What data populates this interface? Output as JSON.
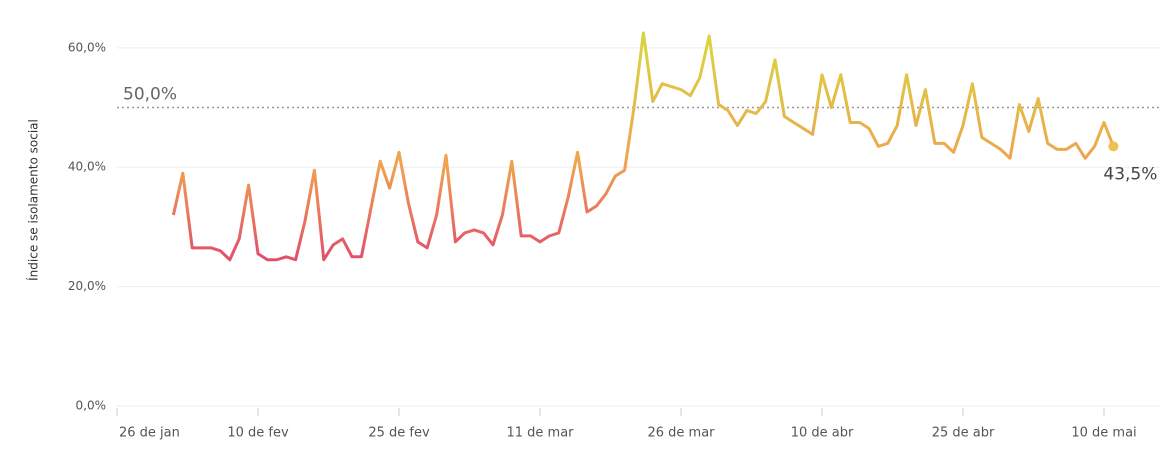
{
  "chart_data": {
    "type": "line",
    "y_label": "Índice se isolamento social",
    "x": [
      "26 de jan",
      "27 de jan",
      "28 de jan",
      "29 de jan",
      "30 de jan",
      "31 de jan",
      "1 de fev",
      "2 de fev",
      "3 de fev",
      "4 de fev",
      "5 de fev",
      "6 de fev",
      "7 de fev",
      "8 de fev",
      "9 de fev",
      "10 de fev",
      "11 de fev",
      "12 de fev",
      "13 de fev",
      "14 de fev",
      "15 de fev",
      "16 de fev",
      "17 de fev",
      "18 de fev",
      "19 de fev",
      "20 de fev",
      "21 de fev",
      "22 de fev",
      "23 de fev",
      "24 de fev",
      "25 de fev",
      "26 de fev",
      "27 de fev",
      "28 de fev",
      "29 de fev",
      "1 de mar",
      "2 de mar",
      "3 de mar",
      "4 de mar",
      "5 de mar",
      "6 de mar",
      "7 de mar",
      "8 de mar",
      "9 de mar",
      "10 de mar",
      "11 de mar",
      "12 de mar",
      "13 de mar",
      "14 de mar",
      "15 de mar",
      "16 de mar",
      "17 de mar",
      "18 de mar",
      "19 de mar",
      "20 de mar",
      "21 de mar",
      "22 de mar",
      "23 de mar",
      "24 de mar",
      "25 de mar",
      "26 de mar",
      "27 de mar",
      "28 de mar",
      "29 de mar",
      "30 de mar",
      "31 de mar",
      "1 de abr",
      "2 de abr",
      "3 de abr",
      "4 de abr",
      "5 de abr",
      "6 de abr",
      "7 de abr",
      "8 de abr",
      "9 de abr",
      "10 de abr",
      "11 de abr",
      "12 de abr",
      "13 de abr",
      "14 de abr",
      "15 de abr",
      "16 de abr",
      "17 de abr",
      "18 de abr",
      "19 de abr",
      "20 de abr",
      "21 de abr",
      "22 de abr",
      "23 de abr",
      "24 de abr",
      "25 de abr",
      "26 de abr",
      "27 de abr",
      "28 de abr",
      "29 de abr",
      "30 de abr",
      "1 de mai",
      "2 de mai",
      "3 de mai",
      "4 de mai",
      "5 de mai",
      "6 de mai",
      "7 de mai",
      "8 de mai",
      "9 de mai",
      "10 de mai",
      "11 de mai"
    ],
    "series": [
      {
        "name": "Índice se isolamento social",
        "values": [
          null,
          null,
          null,
          null,
          null,
          null,
          32,
          39,
          26.5,
          26.5,
          26.5,
          26,
          24.5,
          28,
          37,
          25.5,
          24.5,
          24.5,
          25,
          24.5,
          31,
          39.5,
          24.5,
          27,
          28,
          25,
          25,
          33,
          41,
          36.5,
          42.5,
          34,
          27.5,
          26.5,
          32,
          42,
          27.5,
          29,
          29.5,
          29,
          27,
          32,
          41,
          28.5,
          28.5,
          27.5,
          28.5,
          29,
          35,
          42.5,
          32.5,
          33.5,
          35.5,
          38.5,
          39.5,
          50,
          62.5,
          51,
          54,
          53.5,
          53,
          52,
          55,
          62,
          50.5,
          49.5,
          47,
          49.5,
          49,
          51,
          58,
          48.5,
          47.5,
          46.5,
          45.5,
          55.5,
          50,
          55.5,
          47.5,
          47.5,
          46.5,
          43.5,
          44,
          47,
          55.5,
          47,
          53,
          44,
          44,
          42.5,
          47,
          54,
          45,
          44,
          43,
          41.5,
          50.5,
          46,
          51.5,
          44,
          43,
          43,
          44,
          41.5,
          43.5,
          47.5,
          43.5
        ],
        "last_value_label": "43,5%"
      }
    ],
    "color_scale": [
      {
        "value": 25,
        "color": "#e2506a"
      },
      {
        "value": 40,
        "color": "#f0a050"
      },
      {
        "value": 60,
        "color": "#d9d341"
      }
    ],
    "xticks": [
      "26 de jan",
      "10 de fev",
      "25 de fev",
      "11 de mar",
      "26 de mar",
      "10 de abr",
      "25 de abr",
      "10 de mai"
    ],
    "ylim": [
      0,
      65
    ],
    "yticks": [
      {
        "value": 0,
        "label": "0,0%"
      },
      {
        "value": 20,
        "label": "20,0%"
      },
      {
        "value": 40,
        "label": "40,0%"
      },
      {
        "value": 60,
        "label": "60,0%"
      }
    ],
    "reference_line": {
      "value": 50,
      "label": "50,0%"
    },
    "grid": true
  }
}
